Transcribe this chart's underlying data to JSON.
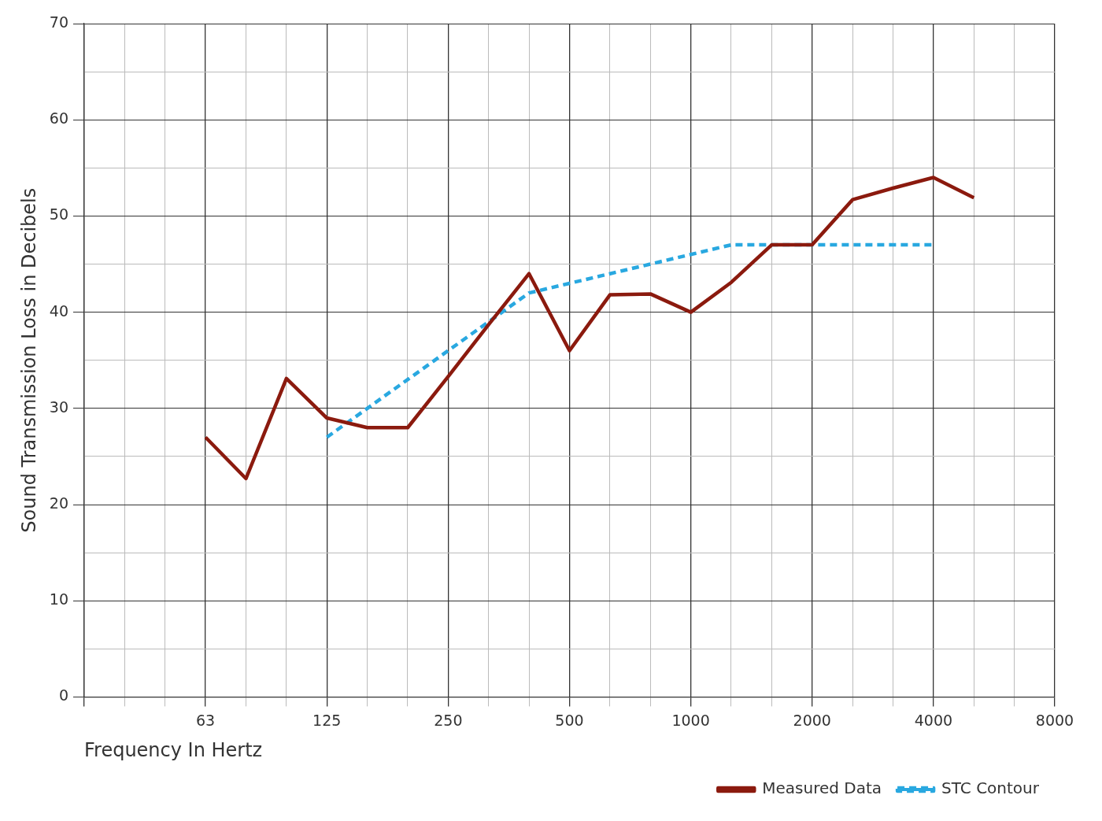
{
  "chart_data": {
    "type": "line",
    "xlabel": "Frequency In Hertz",
    "ylabel": "Sound Transmission Loss in Decibels",
    "categories": [
      null,
      null,
      null,
      "63",
      null,
      null,
      "125",
      null,
      null,
      "250",
      null,
      null,
      "500",
      null,
      null,
      "1000",
      null,
      null,
      "2000",
      null,
      null,
      "4000",
      null,
      null,
      "8000"
    ],
    "series": [
      {
        "name": "Measured Data",
        "color": "#8b1a0e",
        "line_style": "solid",
        "values": [
          null,
          null,
          null,
          27,
          22.7,
          33.1,
          29,
          28,
          28,
          33.3,
          38.7,
          44,
          36,
          41.8,
          41.9,
          40,
          43.1,
          47,
          47,
          51.7,
          52.9,
          54,
          51.9,
          null,
          null
        ]
      },
      {
        "name": "STC Contour",
        "color": "#29a8e0",
        "line_style": "dashed",
        "values": [
          null,
          null,
          null,
          null,
          null,
          null,
          27,
          30,
          33,
          36,
          39,
          42,
          43,
          44,
          45,
          46,
          47,
          47,
          47,
          47,
          47,
          47,
          null,
          null,
          null
        ]
      }
    ],
    "ylim": [
      0,
      70
    ],
    "yticks": [
      0,
      {
        "value": 5,
        "label": null
      },
      10,
      {
        "value": 15,
        "label": null
      },
      20,
      {
        "value": 25,
        "label": null
      },
      30,
      {
        "value": 35,
        "label": null
      },
      40,
      {
        "value": 45,
        "label": null
      },
      50,
      {
        "value": 55,
        "label": null
      },
      60,
      {
        "value": 65,
        "label": null
      },
      70
    ],
    "grid": true,
    "legend": "bottom right",
    "marker": "none"
  }
}
